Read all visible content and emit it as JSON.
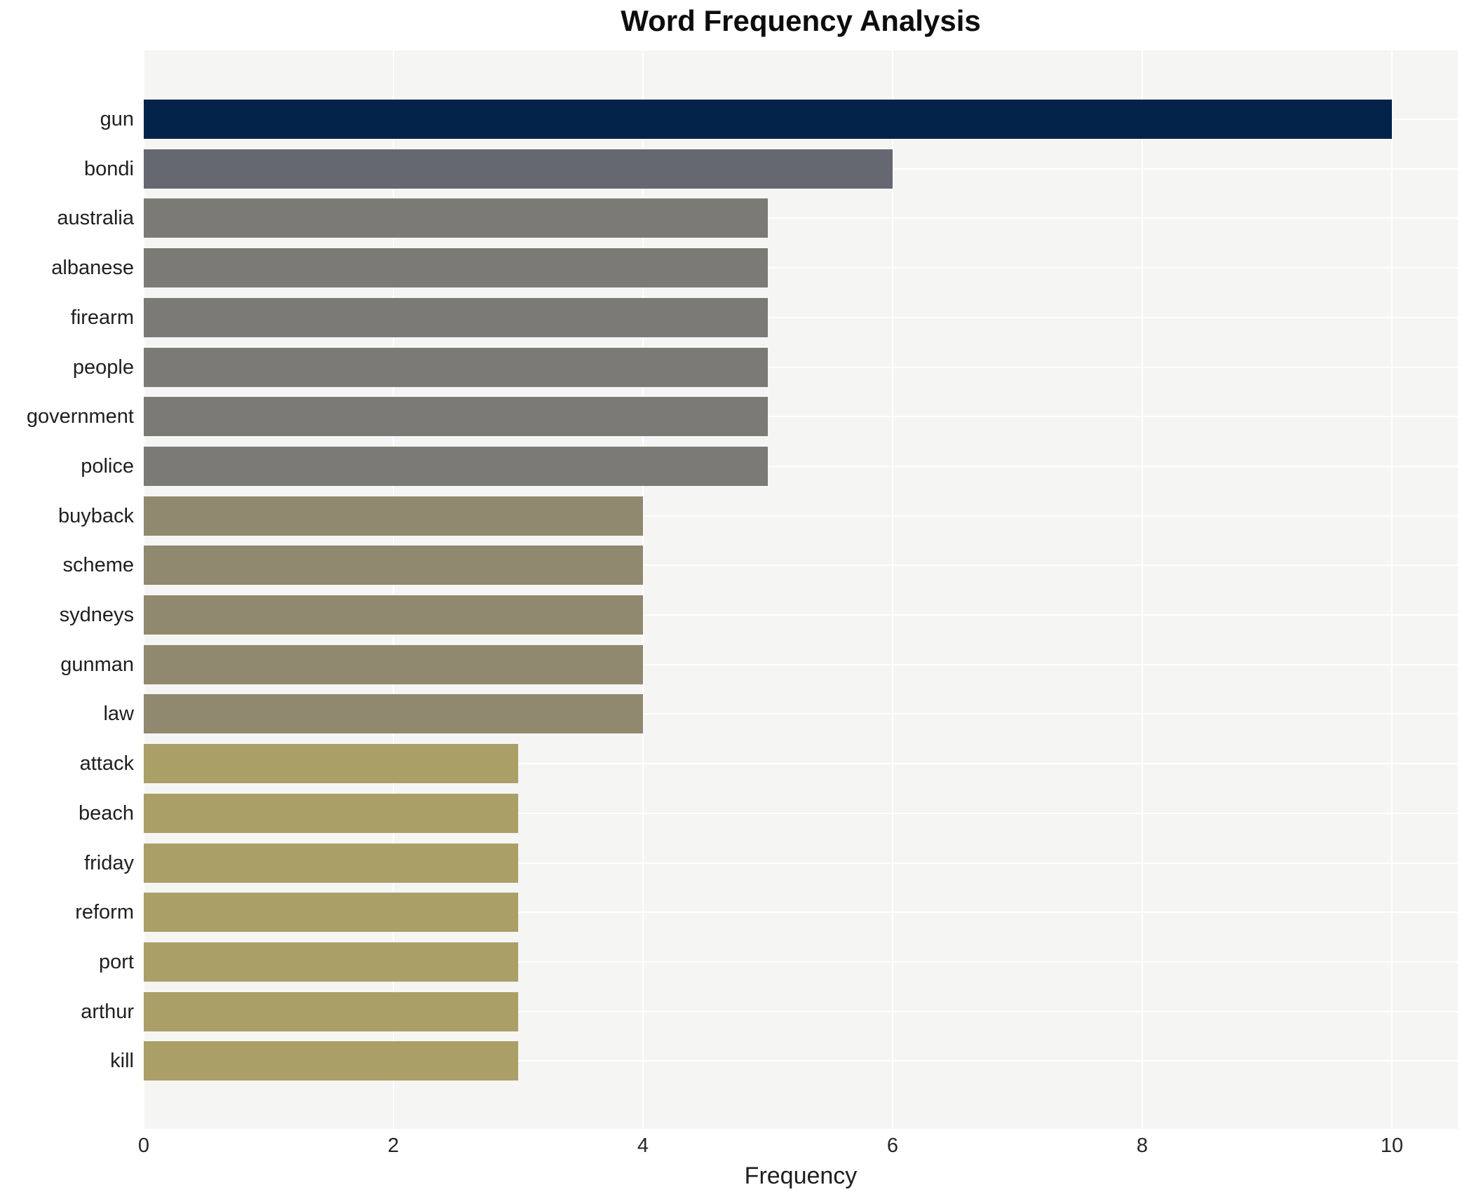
{
  "chart_data": {
    "type": "bar",
    "orientation": "horizontal",
    "title": "Word Frequency Analysis",
    "xlabel": "Frequency",
    "ylabel": "",
    "categories": [
      "gun",
      "bondi",
      "australia",
      "albanese",
      "firearm",
      "people",
      "government",
      "police",
      "buyback",
      "scheme",
      "sydneys",
      "gunman",
      "law",
      "attack",
      "beach",
      "friday",
      "reform",
      "port",
      "arthur",
      "kill"
    ],
    "values": [
      10,
      6,
      5,
      5,
      5,
      5,
      5,
      5,
      4,
      4,
      4,
      4,
      4,
      3,
      3,
      3,
      3,
      3,
      3,
      3
    ],
    "xlim": [
      0,
      10.53
    ],
    "xticks": [
      0,
      2,
      4,
      6,
      8,
      10
    ],
    "grid": true,
    "legend": "none",
    "colors_by_value": {
      "10": "#03234b",
      "6": "#656771",
      "5": "#7b7a74",
      "4": "#90896f",
      "3": "#ab9f68"
    },
    "plot_background": "#f5f5f4",
    "gridline_color": "#ffffff",
    "text_color": "#1f1f1f"
  }
}
